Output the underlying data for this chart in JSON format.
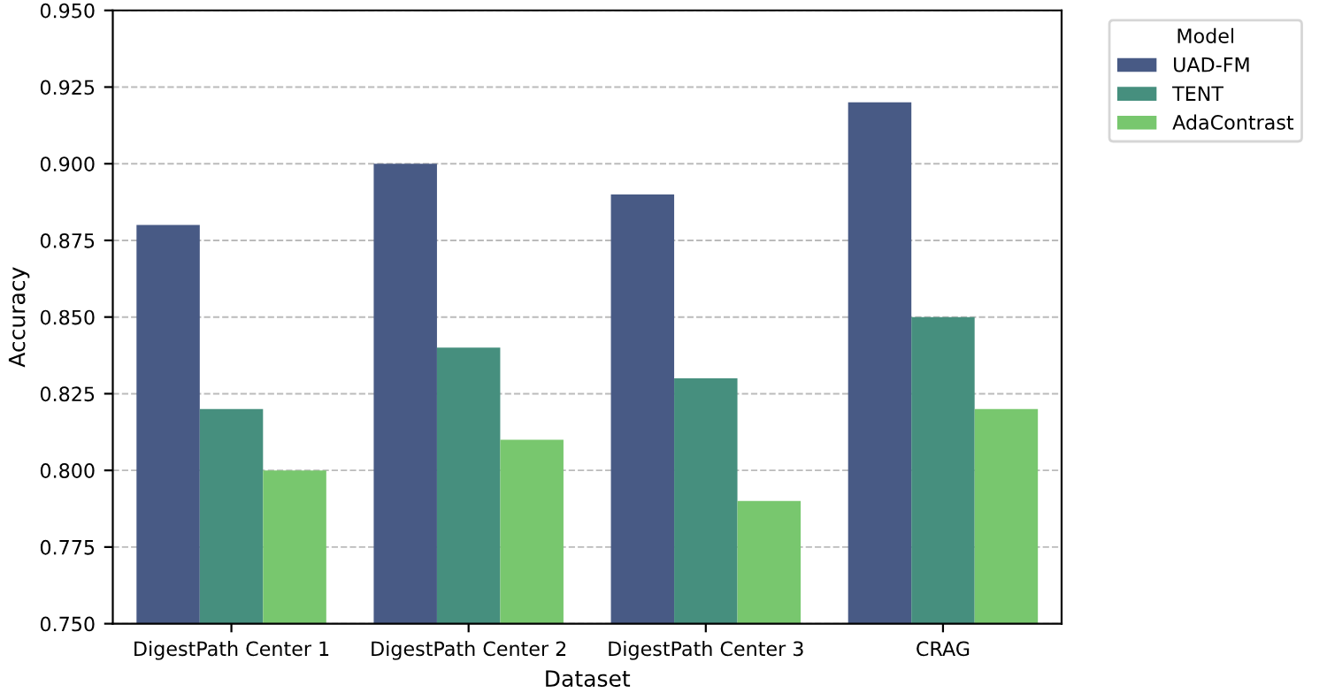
{
  "chart_data": {
    "type": "bar",
    "xlabel": "Dataset",
    "ylabel": "Accuracy",
    "legend_title": "Model",
    "categories": [
      "DigestPath Center 1",
      "DigestPath Center 2",
      "DigestPath Center 3",
      "CRAG"
    ],
    "series": [
      {
        "name": "UAD-FM",
        "color": "#485a85",
        "values": [
          0.88,
          0.9,
          0.89,
          0.92
        ]
      },
      {
        "name": "TENT",
        "color": "#468f7e",
        "values": [
          0.82,
          0.84,
          0.83,
          0.85
        ]
      },
      {
        "name": "AdaContrast",
        "color": "#78c76e",
        "values": [
          0.8,
          0.81,
          0.79,
          0.82
        ]
      }
    ],
    "ylim": [
      0.75,
      0.95
    ],
    "yticks": [
      {
        "value": 0.75,
        "label": "0.750"
      },
      {
        "value": 0.775,
        "label": "0.775"
      },
      {
        "value": 0.8,
        "label": "0.800"
      },
      {
        "value": 0.825,
        "label": "0.825"
      },
      {
        "value": 0.85,
        "label": "0.850"
      },
      {
        "value": 0.875,
        "label": "0.875"
      },
      {
        "value": 0.9,
        "label": "0.900"
      },
      {
        "value": 0.925,
        "label": "0.925"
      },
      {
        "value": 0.95,
        "label": "0.950"
      }
    ],
    "grid": "y",
    "legend": "top right"
  }
}
